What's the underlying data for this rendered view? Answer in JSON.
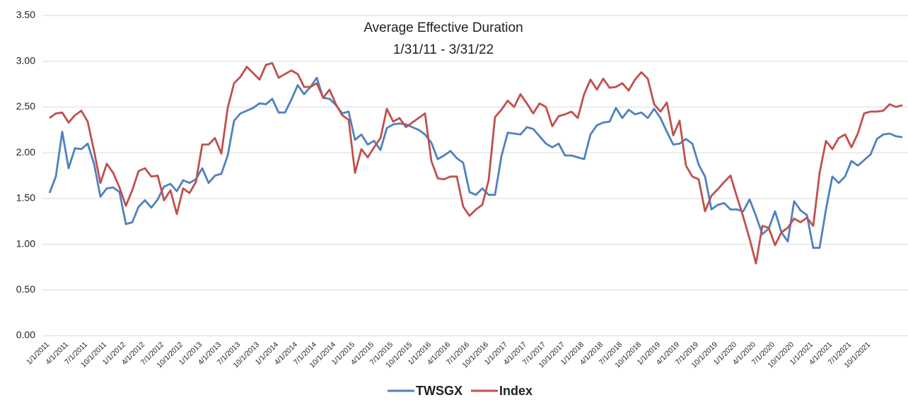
{
  "chart_data": {
    "type": "line",
    "title": "Average Effective Duration",
    "subtitle": "1/31/11 - 3/31/22",
    "categories": [
      "1/1/2011",
      null,
      null,
      "4/1/2011",
      null,
      null,
      "7/1/2011",
      null,
      null,
      "10/1/2011",
      null,
      null,
      "1/1/2012",
      null,
      null,
      "4/1/2012",
      null,
      null,
      "7/1/2012",
      null,
      null,
      "10/1/2012",
      null,
      null,
      "1/1/2013",
      null,
      null,
      "4/1/2013",
      null,
      null,
      "7/1/2013",
      null,
      null,
      "10/1/2013",
      null,
      null,
      "1/1/2014",
      null,
      null,
      "4/1/2014",
      null,
      null,
      "7/1/2014",
      null,
      null,
      "10/1/2014",
      null,
      null,
      "1/1/2015",
      null,
      null,
      "4/1/2015",
      null,
      null,
      "7/1/2015",
      null,
      null,
      "10/1/2015",
      null,
      null,
      "1/1/2016",
      null,
      null,
      "4/1/2016",
      null,
      null,
      "7/1/2016",
      null,
      null,
      "10/1/2016",
      null,
      null,
      "1/1/2017",
      null,
      null,
      "4/1/2017",
      null,
      null,
      "7/1/2017",
      null,
      null,
      "10/1/2017",
      null,
      null,
      "1/1/2018",
      null,
      null,
      "4/1/2018",
      null,
      null,
      "7/1/2018",
      null,
      null,
      "10/1/2018",
      null,
      null,
      "1/1/2019",
      null,
      null,
      "4/1/2019",
      null,
      null,
      "7/1/2019",
      null,
      null,
      "10/1/2019",
      null,
      null,
      "1/1/2020",
      null,
      null,
      "4/1/2020",
      null,
      null,
      "7/1/2020",
      null,
      null,
      "10/1/2020",
      null,
      null,
      "1/1/2021",
      null,
      null,
      "4/1/2021",
      null,
      null,
      "7/1/2021",
      null,
      null,
      "10/1/2021",
      null,
      null,
      null,
      null,
      null
    ],
    "series": [
      {
        "name": "TWSGX",
        "color": "#4f81bd",
        "values": [
          1.56,
          1.74,
          2.23,
          1.83,
          2.05,
          2.04,
          2.1,
          1.88,
          1.52,
          1.61,
          1.62,
          1.57,
          1.22,
          1.24,
          1.41,
          1.48,
          1.4,
          1.49,
          1.63,
          1.66,
          1.58,
          1.7,
          1.67,
          1.71,
          1.83,
          1.67,
          1.75,
          1.77,
          1.97,
          2.35,
          2.43,
          2.46,
          2.49,
          2.54,
          2.53,
          2.59,
          2.44,
          2.44,
          2.58,
          2.74,
          2.64,
          2.72,
          2.82,
          2.6,
          2.59,
          2.52,
          2.43,
          2.45,
          2.14,
          2.2,
          2.09,
          2.13,
          2.03,
          2.27,
          2.31,
          2.32,
          2.31,
          2.28,
          2.25,
          2.2,
          2.11,
          1.93,
          1.97,
          2.02,
          1.94,
          1.89,
          1.57,
          1.54,
          1.61,
          1.54,
          1.54,
          1.96,
          2.22,
          2.21,
          2.2,
          2.28,
          2.26,
          2.18,
          2.1,
          2.06,
          2.1,
          1.97,
          1.97,
          1.95,
          1.93,
          2.2,
          2.3,
          2.33,
          2.34,
          2.49,
          2.38,
          2.47,
          2.42,
          2.44,
          2.38,
          2.48,
          2.38,
          2.23,
          2.09,
          2.1,
          2.15,
          2.1,
          1.87,
          1.74,
          1.38,
          1.43,
          1.45,
          1.38,
          1.38,
          1.36,
          1.49,
          1.31,
          1.11,
          1.17,
          1.36,
          1.13,
          1.03,
          1.47,
          1.37,
          1.32,
          0.96,
          0.96,
          1.38,
          1.74,
          1.67,
          1.74,
          1.91,
          1.86,
          1.92,
          1.98,
          2.15,
          2.2,
          2.21,
          2.18,
          2.17
        ]
      },
      {
        "name": "Index",
        "color": "#c0504d",
        "values": [
          2.38,
          2.43,
          2.44,
          2.33,
          2.41,
          2.46,
          2.34,
          2.02,
          1.67,
          1.88,
          1.78,
          1.62,
          1.42,
          1.59,
          1.8,
          1.83,
          1.74,
          1.75,
          1.48,
          1.59,
          1.33,
          1.61,
          1.56,
          1.68,
          2.09,
          2.09,
          2.16,
          1.99,
          2.49,
          2.76,
          2.83,
          2.94,
          2.87,
          2.8,
          2.96,
          2.98,
          2.82,
          2.86,
          2.9,
          2.86,
          2.72,
          2.72,
          2.76,
          2.6,
          2.69,
          2.53,
          2.41,
          2.36,
          1.78,
          2.04,
          1.95,
          2.06,
          2.16,
          2.48,
          2.34,
          2.38,
          2.28,
          2.33,
          2.38,
          2.43,
          1.91,
          1.72,
          1.71,
          1.74,
          1.74,
          1.41,
          1.31,
          1.38,
          1.43,
          1.7,
          2.39,
          2.47,
          2.57,
          2.5,
          2.64,
          2.54,
          2.43,
          2.54,
          2.5,
          2.29,
          2.4,
          2.42,
          2.45,
          2.38,
          2.64,
          2.8,
          2.69,
          2.81,
          2.71,
          2.72,
          2.76,
          2.68,
          2.8,
          2.88,
          2.81,
          2.53,
          2.45,
          2.55,
          2.19,
          2.35,
          1.86,
          1.74,
          1.71,
          1.36,
          1.53,
          1.6,
          1.68,
          1.75,
          1.52,
          1.3,
          1.06,
          0.79,
          1.2,
          1.18,
          0.99,
          1.13,
          1.18,
          1.28,
          1.24,
          1.29,
          1.2,
          1.78,
          2.13,
          2.04,
          2.16,
          2.2,
          2.06,
          2.21,
          2.43,
          2.45,
          2.45,
          2.46,
          2.53,
          2.5,
          2.52
        ]
      }
    ],
    "ylim": [
      0,
      3.5
    ],
    "yticks": [
      {
        "value": 0,
        "label": "0.00"
      },
      {
        "value": 0.5,
        "label": "0.50"
      },
      {
        "value": 1,
        "label": "1.00"
      },
      {
        "value": 1.5,
        "label": "1.50"
      },
      {
        "value": 2,
        "label": "2.00"
      },
      {
        "value": 2.5,
        "label": "2.50"
      },
      {
        "value": 3,
        "label": "3.00"
      },
      {
        "value": 3.5,
        "label": "3.50"
      }
    ],
    "grid": true,
    "legend": "bottom"
  }
}
